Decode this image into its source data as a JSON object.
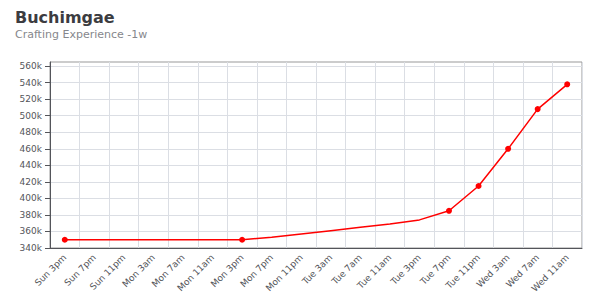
{
  "chart_data": {
    "type": "line",
    "title": "Buchimgae",
    "subtitle": "Crafting Experience -1w",
    "categories": [
      "Sun 3pm",
      "Sun 7pm",
      "Sun 11pm",
      "Mon 3am",
      "Mon 7am",
      "Mon 11am",
      "Mon 3pm",
      "Mon 7pm",
      "Mon 11pm",
      "Tue 3am",
      "Tue 7am",
      "Tue 11am",
      "Tue 3pm",
      "Tue 7pm",
      "Tue 11pm",
      "Wed 3am",
      "Wed 7am",
      "Wed 11am"
    ],
    "values": [
      350000,
      350000,
      350000,
      350000,
      350000,
      350000,
      350000,
      353000,
      357000,
      361000,
      365000,
      369000,
      374000,
      385000,
      415000,
      460000,
      508000,
      538000
    ],
    "dot_indices": [
      0,
      6,
      13,
      14,
      15,
      16,
      17
    ],
    "marker": "circle",
    "color": "#ff0000",
    "ylim": [
      340000,
      565000
    ],
    "yticks": [
      {
        "value": 340000,
        "label": "340k"
      },
      {
        "value": 360000,
        "label": "360k"
      },
      {
        "value": 380000,
        "label": "380k"
      },
      {
        "value": 400000,
        "label": "400k"
      },
      {
        "value": 420000,
        "label": "420k"
      },
      {
        "value": 440000,
        "label": "440k"
      },
      {
        "value": 460000,
        "label": "460k"
      },
      {
        "value": 480000,
        "label": "480k"
      },
      {
        "value": 500000,
        "label": "500k"
      },
      {
        "value": 520000,
        "label": "520k"
      },
      {
        "value": 540000,
        "label": "540k"
      },
      {
        "value": 560000,
        "label": "560k"
      }
    ],
    "grid": true
  }
}
